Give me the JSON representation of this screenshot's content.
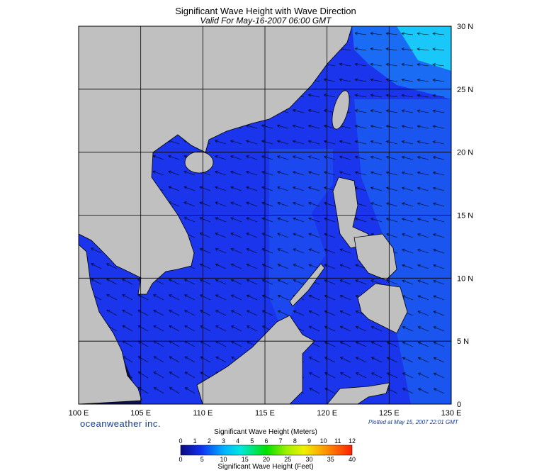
{
  "header": {
    "title": "Significant Wave Height with Wave Direction",
    "subtitle": "Valid For May-16-2007 06:00 GMT"
  },
  "map": {
    "lat_labels": [
      "0",
      "5 N",
      "10 N",
      "15 N",
      "20 N",
      "25 N",
      "30 N"
    ],
    "lon_labels": [
      "100 E",
      "105 E",
      "110 E",
      "115 E",
      "120 E",
      "125 E",
      "130 E"
    ],
    "brand": "oceanweather inc.",
    "plotted": "Plotted at May 15, 2007 22:01 GMT"
  },
  "legend": {
    "meters_title": "Significant Wave Height (Meters)",
    "meters_ticks": [
      0,
      1,
      2,
      3,
      4,
      5,
      6,
      7,
      8,
      9,
      10,
      11,
      12
    ],
    "feet_ticks": [
      0,
      5,
      10,
      15,
      20,
      25,
      30,
      35,
      40
    ],
    "feet_title": "Significant Wave Height (Feet)"
  }
}
